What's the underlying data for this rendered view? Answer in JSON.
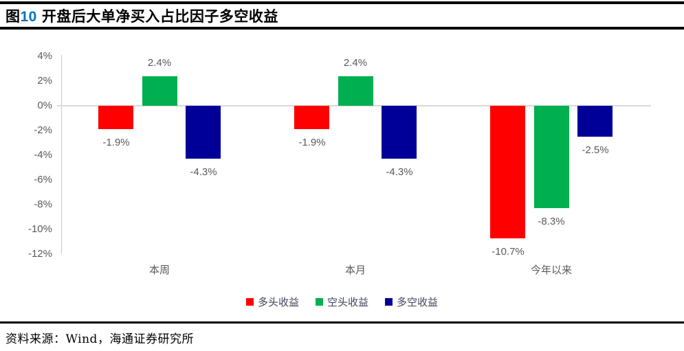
{
  "title": {
    "fig": "图",
    "num": "10",
    "text": "开盘后大单净买入占比因子多空收益"
  },
  "footer": {
    "source": "资料来源：Wind，海通证券研究所"
  },
  "chart_data": {
    "type": "bar",
    "categories": [
      "本周",
      "本月",
      "今年以来"
    ],
    "series": [
      {
        "key": "long-return",
        "name": "多头收益",
        "color": "#FF0000",
        "values": [
          -1.9,
          -1.9,
          -10.7
        ],
        "labels": [
          "-1.9%",
          "-1.9%",
          "-10.7%"
        ]
      },
      {
        "key": "short-return",
        "name": "空头收益",
        "color": "#00B050",
        "values": [
          2.4,
          2.4,
          -8.3
        ],
        "labels": [
          "2.4%",
          "2.4%",
          "-8.3%"
        ]
      },
      {
        "key": "long-short-return",
        "name": "多空收益",
        "color": "#000099",
        "values": [
          -4.3,
          -4.3,
          -2.5
        ],
        "labels": [
          "-4.3%",
          "-4.3%",
          "-2.5%"
        ]
      }
    ],
    "y_ticks": [
      "4%",
      "2%",
      "0%",
      "-2%",
      "-4%",
      "-6%",
      "-8%",
      "-10%",
      "-12%"
    ],
    "ylim": [
      -12,
      4
    ],
    "unit": "%",
    "grid": "zero-line-only",
    "legend_position": "bottom",
    "colors": {
      "accent_title_number": "#0070C0",
      "axis_gray": "#C9C9C9",
      "label_gray": "#595959"
    }
  }
}
